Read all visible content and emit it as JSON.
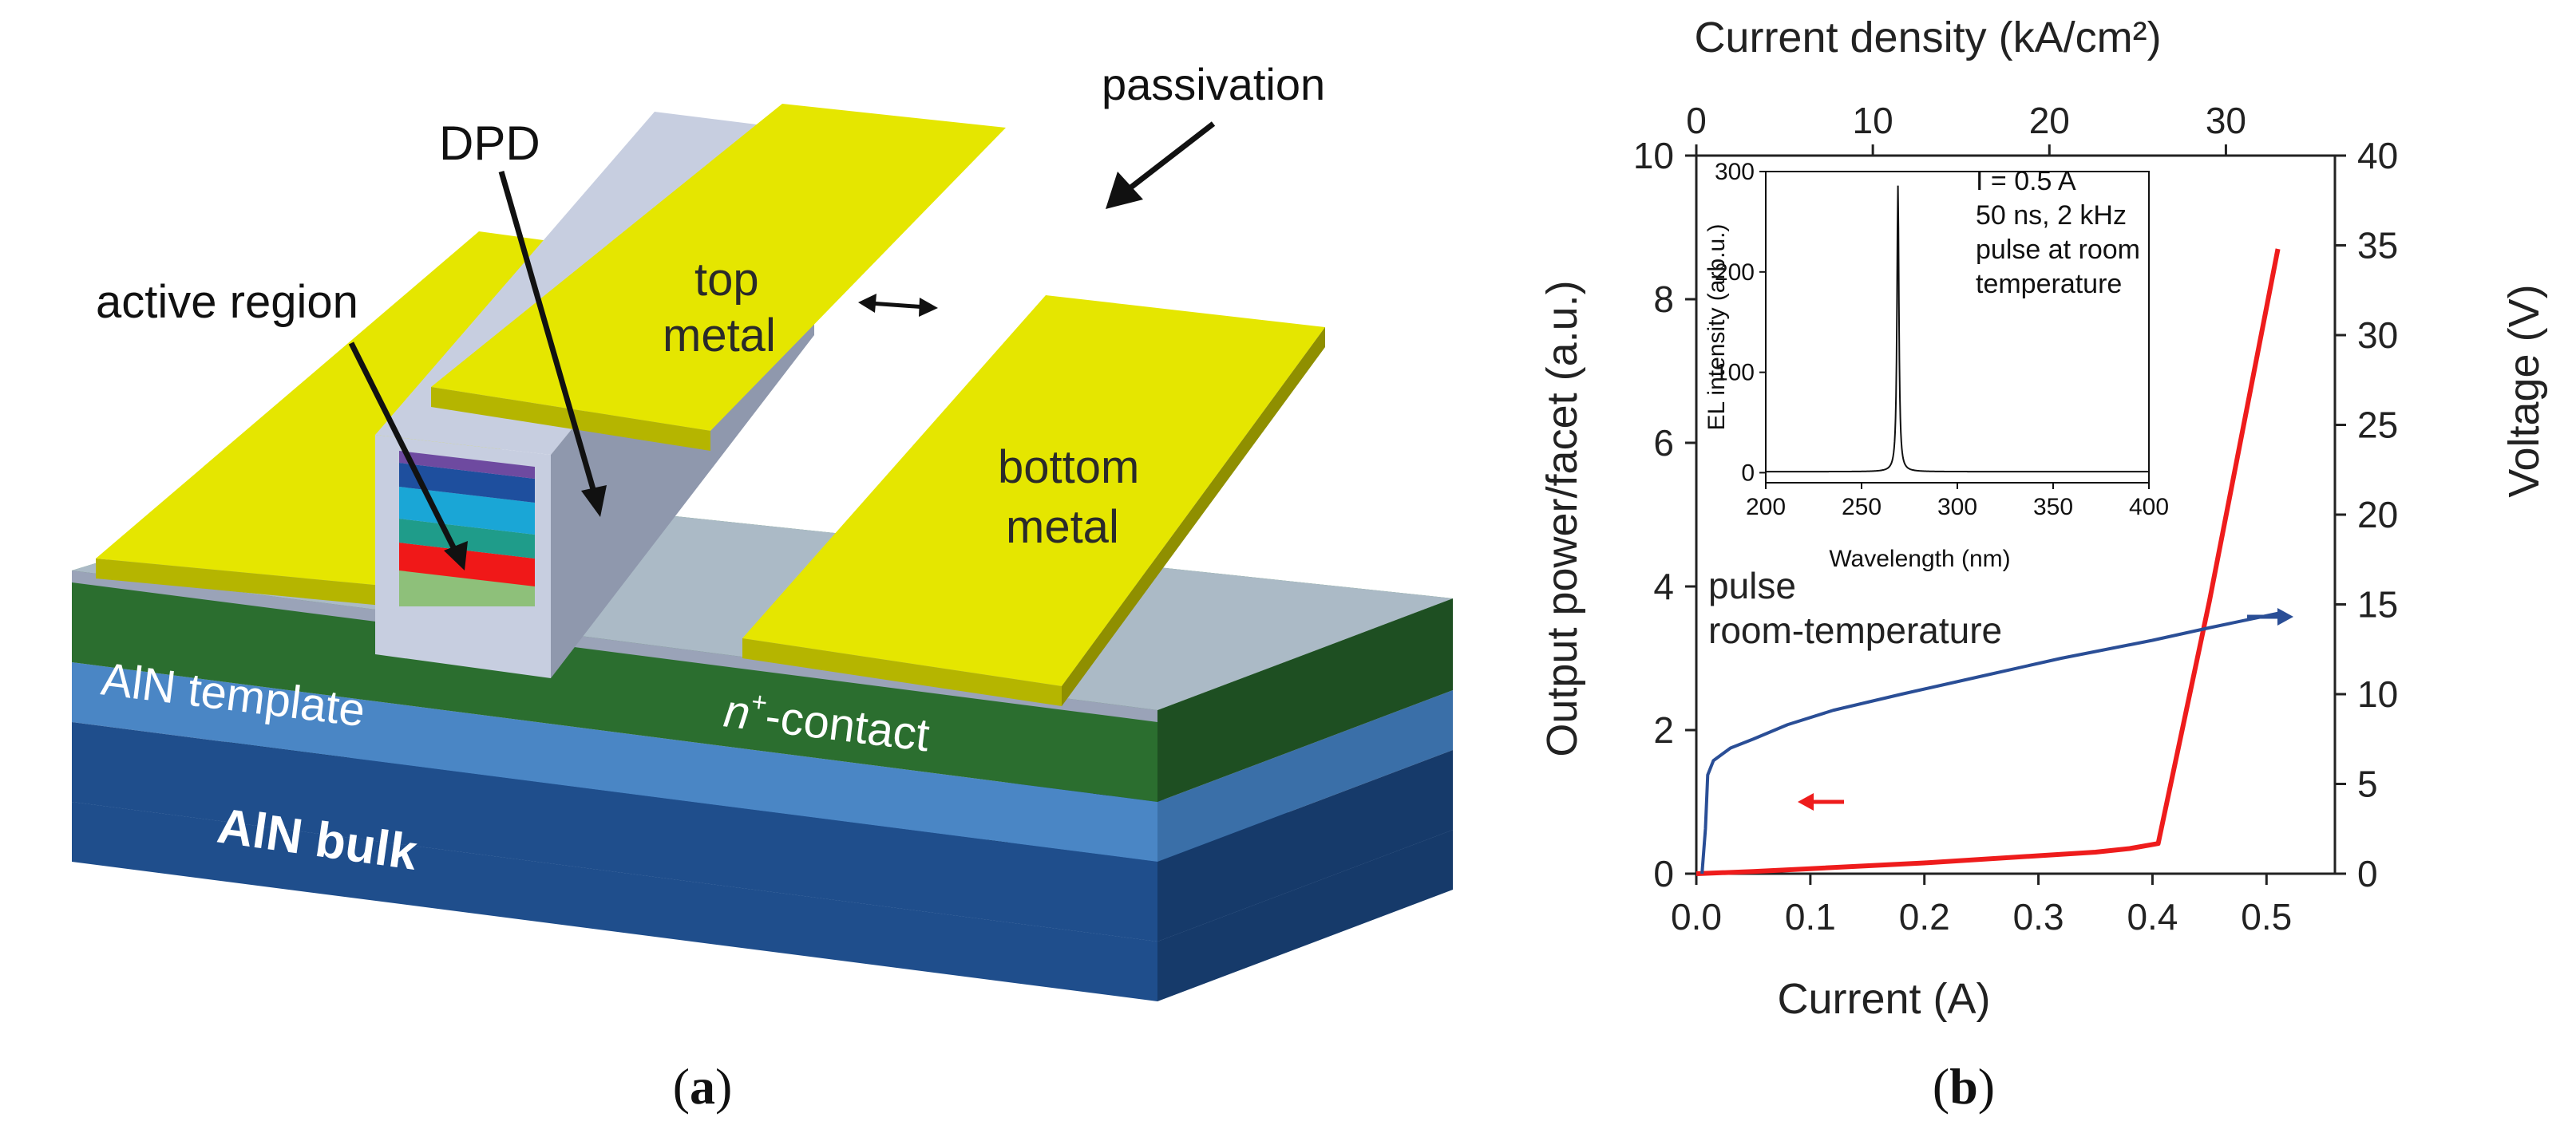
{
  "figure": {
    "panel_a_label": "a",
    "panel_b_label": "b"
  },
  "schematic": {
    "labels": {
      "passivation": "passivation",
      "dpd": "DPD",
      "active_region": "active region",
      "top_metal_1": "top",
      "top_metal_2": "metal",
      "bottom_metal_1": "bottom",
      "bottom_metal_2": "metal",
      "aln_template": "AlN template",
      "n_contact_n": "n",
      "n_contact_sup": "+",
      "n_contact_rest": "-contact",
      "aln_bulk": "AlN bulk"
    },
    "colors": {
      "metal": "#e5e600",
      "metal_dark": "#b5b500",
      "passivation": "#b7bfd4",
      "passivation_dark": "#8f98ad",
      "n_contact": "#2b6e2f",
      "n_contact_dark": "#1e4f22",
      "aln_template": "#4a86c5",
      "aln_bulk": "#1f4e8c",
      "aln_bulk_dark": "#163a6a",
      "layer_purple": "#6e4aa0",
      "layer_darkblue": "#1e4f9e",
      "layer_cyan": "#1aa6d6",
      "layer_teal": "#1f9c8a",
      "layer_red": "#f01818",
      "layer_lightgreen": "#8ec07a"
    }
  },
  "chart_data": {
    "type": "line",
    "xlabel": "Current (A)",
    "ylabel_left": "Output power/facet (a.u.)",
    "ylabel_right": "Voltage (V)",
    "top_axis_label": "Current density (kA/cm²)",
    "xlim": [
      0.0,
      0.56
    ],
    "ylim_left": [
      0,
      10
    ],
    "ylim_right": [
      0,
      40
    ],
    "top_axis_range_per_A": 64.6,
    "x_ticks": [
      "0.0",
      "0.1",
      "0.2",
      "0.3",
      "0.4",
      "0.5"
    ],
    "y_left_ticks": [
      "0",
      "2",
      "4",
      "6",
      "8",
      "10"
    ],
    "y_right_ticks": [
      "0",
      "5",
      "10",
      "15",
      "20",
      "25",
      "30",
      "35",
      "40"
    ],
    "top_ticks": [
      "0",
      "10",
      "20",
      "30"
    ],
    "annotation": {
      "line1": "pulse",
      "line2": "room-temperature"
    },
    "series": [
      {
        "name": "Output power",
        "axis": "left",
        "color": "#ee1c1c",
        "x": [
          0.0,
          0.05,
          0.1,
          0.2,
          0.3,
          0.35,
          0.38,
          0.405,
          0.45,
          0.51
        ],
        "y": [
          0.0,
          0.03,
          0.07,
          0.15,
          0.25,
          0.3,
          0.35,
          0.42,
          3.8,
          8.7
        ]
      },
      {
        "name": "Voltage",
        "axis": "right",
        "color": "#2a4e96",
        "x": [
          0.005,
          0.008,
          0.01,
          0.015,
          0.03,
          0.05,
          0.08,
          0.12,
          0.18,
          0.25,
          0.32,
          0.4,
          0.45,
          0.51
        ],
        "y": [
          0.0,
          2.5,
          5.5,
          6.3,
          7.0,
          7.5,
          8.3,
          9.1,
          10.0,
          11.0,
          12.0,
          13.0,
          13.7,
          14.5
        ]
      }
    ],
    "inset": {
      "type": "line",
      "xlabel": "Wavelength (nm)",
      "ylabel": "EL intensity (arb.u.)",
      "xlim": [
        200,
        400
      ],
      "ylim": [
        -10,
        300
      ],
      "x_ticks": [
        "200",
        "250",
        "300",
        "350",
        "400"
      ],
      "y_ticks": [
        "0",
        "100",
        "200",
        "300"
      ],
      "text_lines": [
        "I = 0.5 A",
        "50 ns, 2 kHz",
        "pulse at room",
        "temperature"
      ],
      "peak_nm": 269,
      "peak_value": 285,
      "fwhm_nm": 1.2
    }
  }
}
